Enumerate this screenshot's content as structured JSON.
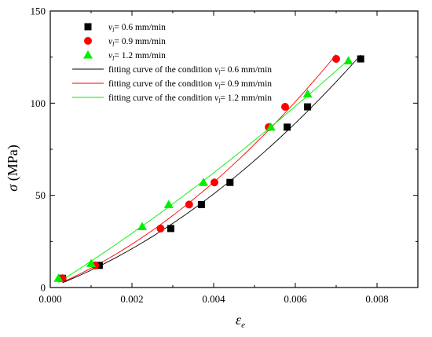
{
  "chart_data": {
    "type": "scatter",
    "title": "",
    "xlabel": "ε_e",
    "ylabel": "σ (MPa)",
    "xlim": [
      0,
      0.009
    ],
    "ylim": [
      0,
      150
    ],
    "x_ticks": [
      "0.000",
      "0.002",
      "0.004",
      "0.006",
      "0.008"
    ],
    "y_ticks": [
      "0",
      "50",
      "100",
      "150"
    ],
    "grid": false,
    "legend_position": "top-left",
    "series": [
      {
        "name": "v_l= 0.6 mm/min",
        "marker": "square",
        "color": "#000000",
        "x": [
          0.0003,
          0.0012,
          0.00295,
          0.0037,
          0.0044,
          0.0058,
          0.0063,
          0.0076
        ],
        "y": [
          5,
          12,
          32,
          45,
          57,
          87,
          98,
          124
        ]
      },
      {
        "name": "v_l= 0.9 mm/min",
        "marker": "circle",
        "color": "#ff0000",
        "x": [
          0.0003,
          0.0011,
          0.0027,
          0.0034,
          0.00402,
          0.00535,
          0.00575,
          0.007
        ],
        "y": [
          5,
          12,
          32,
          45,
          57,
          87,
          98,
          124
        ]
      },
      {
        "name": "v_l= 1.2 mm/min",
        "marker": "triangle",
        "color": "#00ee00",
        "x": [
          0.0002,
          0.001,
          0.00225,
          0.0029,
          0.00375,
          0.0054,
          0.0063,
          0.0073
        ],
        "y": [
          5,
          13,
          33,
          45,
          57,
          87,
          105,
          123
        ]
      }
    ],
    "fit_curves": [
      {
        "name": "fitting curve of the condition v_l= 0.6 mm/min",
        "color": "#000000",
        "x_start": 0.0003,
        "x_end": 0.0076
      },
      {
        "name": "fitting curve of the condition v_l= 0.9 mm/min",
        "color": "#ff0000",
        "x_start": 0.0003,
        "x_end": 0.007
      },
      {
        "name": "fitting curve of the condition v_l= 1.2 mm/min",
        "color": "#00ee00",
        "x_start": 0.0002,
        "x_end": 0.0073
      }
    ]
  },
  "legend": {
    "entries": [
      {
        "var": "v",
        "sub": "l",
        "text": "= 0.6 mm/min"
      },
      {
        "var": "v",
        "sub": "l",
        "text": "= 0.9 mm/min"
      },
      {
        "var": "v",
        "sub": "l",
        "text": "= 1.2 mm/min"
      },
      {
        "prefix": "fitting curve of the condition ",
        "var": "v",
        "sub": "l",
        "text": "= 0.6 mm/min"
      },
      {
        "prefix": "fitting curve of the condition ",
        "var": "v",
        "sub": "l",
        "text": "= 0.9 mm/min"
      },
      {
        "prefix": "fitting curve of the condition ",
        "var": "v",
        "sub": "l",
        "text": "= 1.2 mm/min"
      }
    ]
  },
  "axis_titles": {
    "x_symbol": "ε",
    "x_sub": "e",
    "y_symbol": "σ",
    "y_unit": " (MPa)"
  }
}
